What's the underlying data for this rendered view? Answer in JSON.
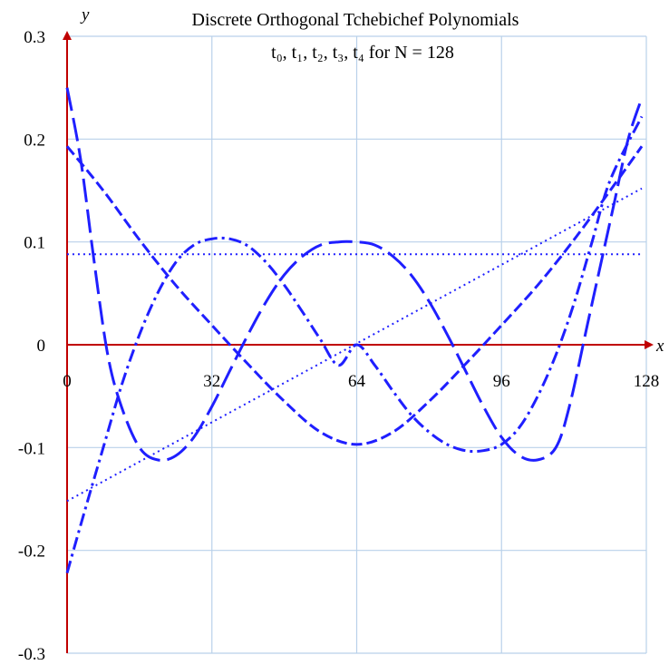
{
  "chart_data": {
    "type": "line",
    "title": "Discrete Orthogonal Tchebichef Polynomials",
    "subtitle": "t₀, t₁, t₂, t₃, t₄ for N = 128",
    "xlabel": "x",
    "ylabel": "y",
    "xlim": [
      0,
      128
    ],
    "ylim": [
      -0.3,
      0.3
    ],
    "x_ticks": [
      "0",
      "32",
      "64",
      "96",
      "128"
    ],
    "y_ticks": [
      "0.3",
      "0.2",
      "0.1",
      "0",
      "-0.1",
      "-0.2",
      "-0.3"
    ],
    "grid": true,
    "line_color": "#1f1fff",
    "axis_color": "#c00000",
    "grid_color": "#b9d1ea",
    "series": [
      {
        "key": "t0",
        "style": "dotted",
        "points": [
          [
            0,
            0.088
          ],
          [
            127,
            0.088
          ]
        ]
      },
      {
        "key": "t1",
        "style": "dotted",
        "points": [
          [
            0,
            -0.152
          ],
          [
            127,
            0.152
          ]
        ]
      },
      {
        "key": "t2",
        "style": "short-dash",
        "points": [
          [
            0,
            0.193
          ],
          [
            8,
            0.15
          ],
          [
            16,
            0.102
          ],
          [
            24,
            0.058
          ],
          [
            32,
            0.019
          ],
          [
            40,
            -0.019
          ],
          [
            48,
            -0.055
          ],
          [
            56,
            -0.085
          ],
          [
            64,
            -0.097
          ],
          [
            72,
            -0.085
          ],
          [
            80,
            -0.055
          ],
          [
            88,
            -0.019
          ],
          [
            96,
            0.019
          ],
          [
            104,
            0.058
          ],
          [
            112,
            0.102
          ],
          [
            120,
            0.15
          ],
          [
            127,
            0.193
          ]
        ]
      },
      {
        "key": "t3",
        "style": "dash-dot",
        "points": [
          [
            0,
            -0.222
          ],
          [
            4,
            -0.16
          ],
          [
            8,
            -0.1
          ],
          [
            12,
            -0.04
          ],
          [
            16,
            0.01
          ],
          [
            20,
            0.05
          ],
          [
            24,
            0.08
          ],
          [
            28,
            0.097
          ],
          [
            32,
            0.103
          ],
          [
            36,
            0.103
          ],
          [
            40,
            0.096
          ],
          [
            44,
            0.08
          ],
          [
            48,
            0.058
          ],
          [
            52,
            0.032
          ],
          [
            56,
            0.005
          ],
          [
            60,
            -0.02
          ],
          [
            64,
            0.0
          ],
          [
            68,
            -0.02
          ],
          [
            72,
            -0.045
          ],
          [
            76,
            -0.068
          ],
          [
            80,
            -0.085
          ],
          [
            84,
            -0.097
          ],
          [
            88,
            -0.103
          ],
          [
            92,
            -0.103
          ],
          [
            96,
            -0.097
          ],
          [
            100,
            -0.08
          ],
          [
            104,
            -0.05
          ],
          [
            108,
            -0.01
          ],
          [
            112,
            0.04
          ],
          [
            116,
            0.1
          ],
          [
            120,
            0.16
          ],
          [
            127,
            0.222
          ]
        ]
      },
      {
        "key": "t4",
        "style": "long-dash",
        "points": [
          [
            0,
            0.25
          ],
          [
            3,
            0.18
          ],
          [
            6,
            0.08
          ],
          [
            9,
            -0.01
          ],
          [
            12,
            -0.06
          ],
          [
            16,
            -0.1
          ],
          [
            20,
            -0.112
          ],
          [
            24,
            -0.108
          ],
          [
            28,
            -0.09
          ],
          [
            32,
            -0.06
          ],
          [
            36,
            -0.025
          ],
          [
            40,
            0.01
          ],
          [
            44,
            0.042
          ],
          [
            48,
            0.068
          ],
          [
            52,
            0.086
          ],
          [
            56,
            0.097
          ],
          [
            60,
            0.1
          ],
          [
            64,
            0.1
          ],
          [
            68,
            0.097
          ],
          [
            72,
            0.086
          ],
          [
            76,
            0.068
          ],
          [
            80,
            0.042
          ],
          [
            84,
            0.01
          ],
          [
            88,
            -0.025
          ],
          [
            92,
            -0.06
          ],
          [
            96,
            -0.09
          ],
          [
            100,
            -0.108
          ],
          [
            104,
            -0.112
          ],
          [
            108,
            -0.1
          ],
          [
            111,
            -0.06
          ],
          [
            115,
            0.02
          ],
          [
            118,
            0.08
          ],
          [
            121,
            0.14
          ],
          [
            124,
            0.2
          ],
          [
            127,
            0.24
          ]
        ]
      }
    ]
  }
}
